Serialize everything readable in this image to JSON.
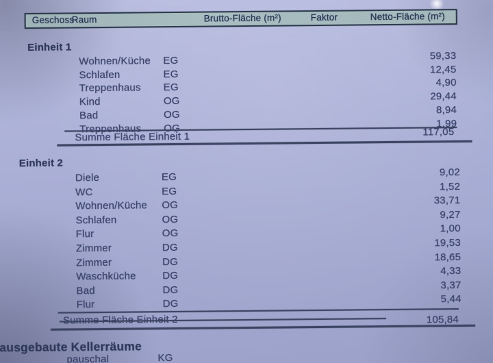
{
  "document": {
    "type": "scanned-area-calculation-sheet",
    "header": {
      "geschoss": "Geschoss",
      "raum": "Raum",
      "brutto": "Brutto-Fläche (m²)",
      "faktor": "Faktor",
      "netto": "Netto-Fläche (m²)"
    },
    "sections": [
      {
        "title": "Einheit 1",
        "rows": [
          {
            "raum": "Wohnen/Küche",
            "geschoss": "EG",
            "netto": "59,33"
          },
          {
            "raum": "Schlafen",
            "geschoss": "EG",
            "netto": "12,45"
          },
          {
            "raum": "Treppenhaus",
            "geschoss": "EG",
            "netto": "4,90"
          },
          {
            "raum": "Kind",
            "geschoss": "OG",
            "netto": "29,44"
          },
          {
            "raum": "Bad",
            "geschoss": "OG",
            "netto": "8,94"
          },
          {
            "raum": "Treppenhaus",
            "geschoss": "OG",
            "netto": "1,99"
          }
        ],
        "summe_label": "Summe Fläche Einheit 1",
        "summe_value": "117,05"
      },
      {
        "title": "Einheit 2",
        "rows": [
          {
            "raum": "Diele",
            "geschoss": "EG",
            "netto": "9,02"
          },
          {
            "raum": "WC",
            "geschoss": "EG",
            "netto": "1,52"
          },
          {
            "raum": "Wohnen/Küche",
            "geschoss": "OG",
            "netto": "33,71"
          },
          {
            "raum": "Schlafen",
            "geschoss": "OG",
            "netto": "9,27"
          },
          {
            "raum": "Flur",
            "geschoss": "OG",
            "netto": "1,00"
          },
          {
            "raum": "Zimmer",
            "geschoss": "DG",
            "netto": "19,53"
          },
          {
            "raum": "Zimmer",
            "geschoss": "DG",
            "netto": "18,65"
          },
          {
            "raum": "Waschküche",
            "geschoss": "DG",
            "netto": "4,33"
          },
          {
            "raum": "Bad",
            "geschoss": "DG",
            "netto": "3,37"
          },
          {
            "raum": "Flur",
            "geschoss": "DG",
            "netto": "5,44"
          }
        ],
        "summe_label": "Summe Fläche Einheit 2",
        "summe_value": "105,84"
      }
    ],
    "footer": {
      "title": "ausgebaute Kellerräume",
      "partial_row": {
        "raum": "pauschal",
        "geschoss": "KG"
      }
    },
    "colors": {
      "paper": "#abb0d7",
      "header_fill": "#a3b9bb",
      "ink": "#39426a",
      "border": "#2d3a4b"
    }
  }
}
